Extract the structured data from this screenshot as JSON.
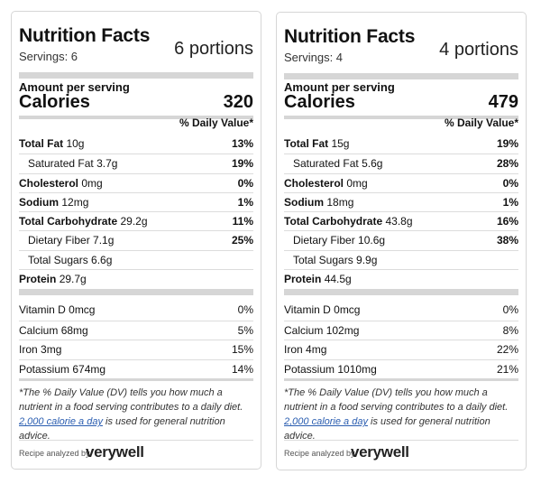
{
  "cards": [
    {
      "title": "Nutrition Facts",
      "servings": "Servings: 6",
      "portions": "6 portions",
      "amount_per_serving": "Amount per serving",
      "calories_label": "Calories",
      "calories_value": "320",
      "dv_header": "% Daily Value*",
      "nutrients": [
        {
          "name": "Total Fat",
          "amount": "10g",
          "pct": "13%"
        },
        {
          "name": "Saturated Fat",
          "amount": "3.7g",
          "pct": "19%"
        },
        {
          "name": "Cholesterol",
          "amount": "0mg",
          "pct": "0%"
        },
        {
          "name": "Sodium",
          "amount": "12mg",
          "pct": "1%"
        },
        {
          "name": "Total Carbohydrate",
          "amount": "29.2g",
          "pct": "11%"
        },
        {
          "name": "Dietary Fiber",
          "amount": "7.1g",
          "pct": "25%"
        },
        {
          "name": "Total Sugars",
          "amount": "6.6g",
          "pct": ""
        },
        {
          "name": "Protein",
          "amount": "29.7g",
          "pct": ""
        }
      ],
      "vitamins": [
        {
          "name": "Vitamin D",
          "amount": "0mcg",
          "pct": "0%"
        },
        {
          "name": "Calcium",
          "amount": "68mg",
          "pct": "5%"
        },
        {
          "name": "Iron",
          "amount": "3mg",
          "pct": "15%"
        },
        {
          "name": "Potassium",
          "amount": "674mg",
          "pct": "14%"
        }
      ],
      "footnote_before": "*The % Daily Value (DV) tells you how much a nutrient in a food serving contributes to a daily diet. ",
      "footnote_link": "2,000 calorie a day",
      "footnote_after": " is used for general nutrition advice.",
      "analyzed_by": "Recipe analyzed by",
      "brand": "verywell"
    },
    {
      "title": "Nutrition Facts",
      "servings": "Servings: 4",
      "portions": "4 portions",
      "amount_per_serving": "Amount per serving",
      "calories_label": "Calories",
      "calories_value": "479",
      "dv_header": "% Daily Value*",
      "nutrients": [
        {
          "name": "Total Fat",
          "amount": "15g",
          "pct": "19%"
        },
        {
          "name": "Saturated Fat",
          "amount": "5.6g",
          "pct": "28%"
        },
        {
          "name": "Cholesterol",
          "amount": "0mg",
          "pct": "0%"
        },
        {
          "name": "Sodium",
          "amount": "18mg",
          "pct": "1%"
        },
        {
          "name": "Total Carbohydrate",
          "amount": "43.8g",
          "pct": "16%"
        },
        {
          "name": "Dietary Fiber",
          "amount": "10.6g",
          "pct": "38%"
        },
        {
          "name": "Total Sugars",
          "amount": "9.9g",
          "pct": ""
        },
        {
          "name": "Protein",
          "amount": "44.5g",
          "pct": ""
        }
      ],
      "vitamins": [
        {
          "name": "Vitamin D",
          "amount": "0mcg",
          "pct": "0%"
        },
        {
          "name": "Calcium",
          "amount": "102mg",
          "pct": "8%"
        },
        {
          "name": "Iron",
          "amount": "4mg",
          "pct": "22%"
        },
        {
          "name": "Potassium",
          "amount": "1010mg",
          "pct": "21%"
        }
      ],
      "footnote_before": "*The % Daily Value (DV) tells you how much a nutrient in a food serving contributes to a daily diet. ",
      "footnote_link": "2,000 calorie a day",
      "footnote_after": " is used for general nutrition advice.",
      "analyzed_by": "Recipe analyzed by",
      "brand": "verywell"
    }
  ]
}
